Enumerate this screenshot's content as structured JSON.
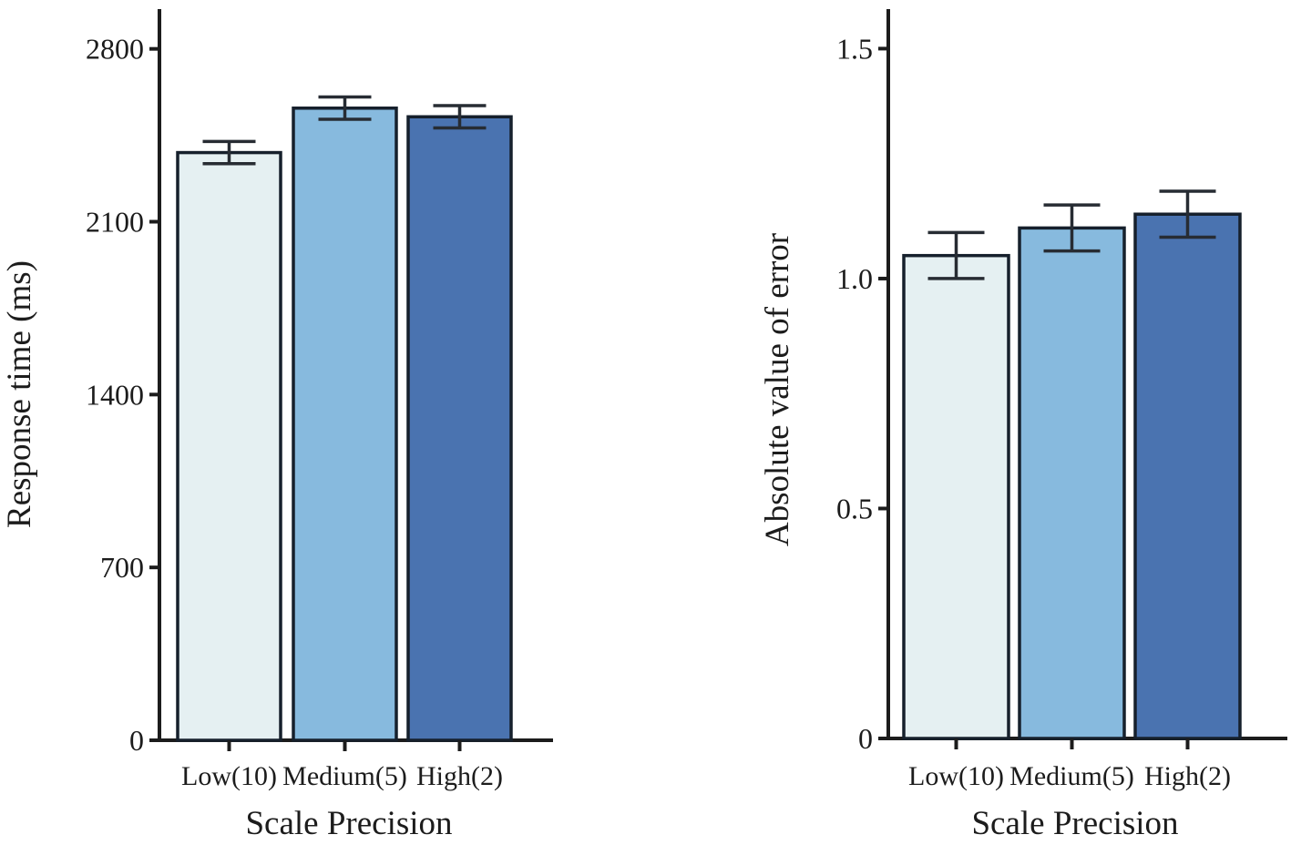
{
  "figure": {
    "background": "#ffffff",
    "description": "Two-panel bar chart figure comparing scale precision conditions"
  },
  "palette": {
    "bar_fills": [
      "#e5f0f2",
      "#87bade",
      "#4a73b0"
    ],
    "bar_border": "#16202c",
    "error_bar_color": "#272c33",
    "axis_color": "#1c1c1c",
    "text_color": "#1c1c1c"
  },
  "chart_data": [
    {
      "type": "bar",
      "panel": "left",
      "title": "",
      "xlabel": "Scale Precision",
      "ylabel": "Response time (ms)",
      "categories": [
        "Low(10)",
        "Medium(5)",
        "High(2)"
      ],
      "values": [
        2380,
        2560,
        2525
      ],
      "errors": [
        45,
        45,
        45
      ],
      "yticks": [
        0,
        700,
        1400,
        2100,
        2800
      ],
      "ytick_labels": [
        "0",
        "700",
        "1400",
        "2100",
        "2800"
      ],
      "ylim": [
        0,
        2950
      ],
      "grid": false,
      "legend_position": "none"
    },
    {
      "type": "bar",
      "panel": "right",
      "title": "",
      "xlabel": "Scale Precision",
      "ylabel": "Absolute value of error",
      "categories": [
        "Low(10)",
        "Medium(5)",
        "High(2)"
      ],
      "values": [
        1.05,
        1.11,
        1.14
      ],
      "errors": [
        0.05,
        0.05,
        0.05
      ],
      "yticks": [
        0,
        0.5,
        1.0,
        1.5
      ],
      "ytick_labels": [
        "0",
        "0.5",
        "1.0",
        "1.5"
      ],
      "ylim": [
        0,
        1.58
      ],
      "grid": false,
      "legend_position": "none"
    }
  ]
}
